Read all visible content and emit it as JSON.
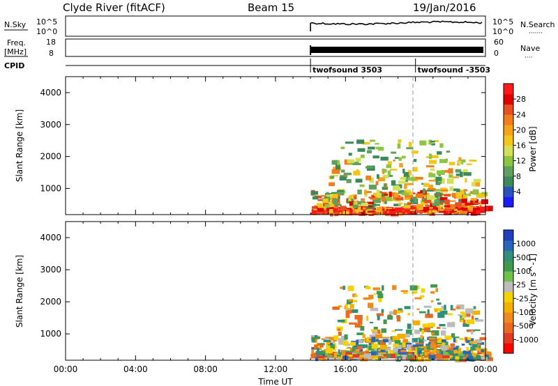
{
  "header": {
    "station": "Clyde River (fitACF)",
    "beam": "Beam 15",
    "date": "19/Jan/2016"
  },
  "strip_labels": {
    "nsky": "N.Sky",
    "freq_line1": "Freq.",
    "freq_line2": "[MHz]",
    "cpid": "CPID",
    "nsearch": "N.Search",
    "nsearch_dots": "·······",
    "nave": "Nave",
    "nave_dots": "····"
  },
  "strip_ticks": {
    "nsky_top": "10^5",
    "nsky_bottom": "10^0",
    "nsearch_top": "10^5",
    "nsearch_bottom": "10^0",
    "freq_top": "18",
    "freq_bottom": "8",
    "nave_top": "60",
    "nave_bottom": "0"
  },
  "cpid_segments": [
    {
      "label": "twofsound 3503",
      "start_hour": 14.0
    },
    {
      "label": "twofsound -3503",
      "start_hour": 20.0
    }
  ],
  "colors": {
    "power": [
      "#1a1aff",
      "#2a52be",
      "#3a8a5a",
      "#5fa05f",
      "#8cc63f",
      "#d4e157",
      "#f5c518",
      "#f7a21b",
      "#f07e1b",
      "#e8501e",
      "#e00000",
      "#ff1a1a"
    ],
    "velocity": [
      "#1f3fbf",
      "#2a66b8",
      "#2f8f7a",
      "#3f9a4f",
      "#6cc24a",
      "#bcbcbc",
      "#f5d100",
      "#f4b000",
      "#f08a1c",
      "#ec6a20",
      "#e53a22",
      "#ff0000"
    ]
  },
  "chart_data": [
    {
      "type": "heatmap",
      "name": "power",
      "xlabel": "",
      "ylabel": "Slant Range [km]",
      "xlim": [
        0,
        24
      ],
      "ylim": [
        180,
        4500
      ],
      "yticks": [
        "1000",
        "2000",
        "3000",
        "4000"
      ],
      "colorbar_label": "Power [dB]",
      "colorbar_ticks": [
        "4",
        "8",
        "12",
        "16",
        "20",
        "24",
        "28"
      ],
      "colorbar_range": [
        0,
        32
      ],
      "data_start_hour": 14.0
    },
    {
      "type": "heatmap",
      "name": "velocity",
      "xlabel": "Time UT",
      "ylabel": "Slant Range [km]",
      "xlim": [
        0,
        24
      ],
      "ylim": [
        180,
        4500
      ],
      "xticks": [
        "00:00",
        "04:00",
        "08:00",
        "12:00",
        "16:00",
        "20:00",
        "00:00"
      ],
      "yticks": [
        "1000",
        "2000",
        "3000",
        "4000"
      ],
      "colorbar_label": "Velocity [m s^-1]",
      "colorbar_ticks": [
        "1000",
        "500",
        "100",
        "25",
        "-25",
        "-100",
        "-500",
        "-1000"
      ],
      "data_start_hour": 14.0
    }
  ]
}
